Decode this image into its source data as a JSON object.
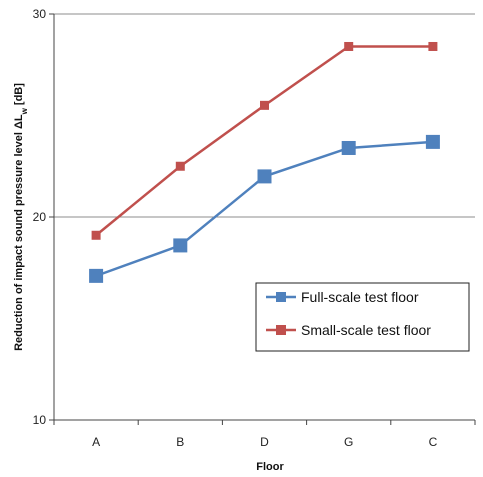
{
  "chart_data": {
    "type": "line",
    "title": "",
    "xlabel": "Floor",
    "ylabel": "Reduction of impact sound pressure level ΔL",
    "ylabel_sub": "w",
    "ylabel_suffix": " [dB]",
    "categories": [
      "A",
      "B",
      "D",
      "G",
      "C"
    ],
    "ylim": [
      10,
      30
    ],
    "yticks": [
      10,
      20,
      30
    ],
    "grid": "horizontal at 20 and 30",
    "legend_position": "right",
    "series": [
      {
        "name": "Full-scale test floor",
        "color": "#4f81bd",
        "values": [
          17.1,
          18.6,
          22.0,
          23.4,
          23.7
        ]
      },
      {
        "name": "Small-scale test floor",
        "color": "#c0504d",
        "values": [
          19.1,
          22.5,
          25.5,
          28.4,
          28.4
        ]
      }
    ]
  }
}
